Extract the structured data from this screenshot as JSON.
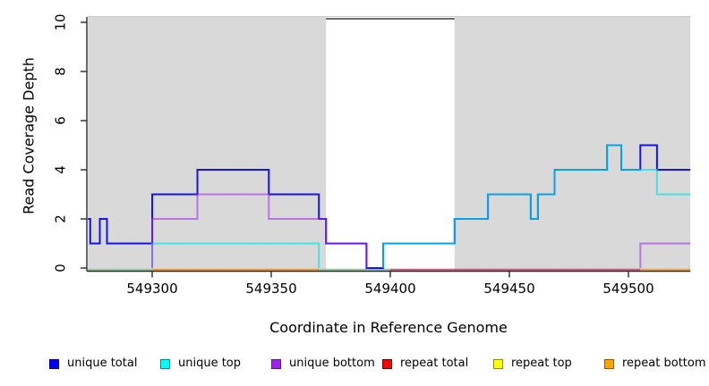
{
  "chart_data": {
    "type": "line",
    "title": "",
    "xlabel": "Coordinate in Reference Genome",
    "ylabel": "Read Coverage Depth",
    "xlim": [
      549273,
      549526
    ],
    "ylim": [
      0,
      10
    ],
    "x_ticks": [
      549300,
      549350,
      549400,
      549450,
      549500
    ],
    "x_tick_labels": [
      "549300",
      "549350",
      "549400",
      "549450",
      "549500"
    ],
    "y_ticks": [
      0,
      2,
      4,
      6,
      8,
      10
    ],
    "y_tick_labels": [
      "0",
      "2",
      "4",
      "6",
      "8",
      "10"
    ],
    "grid": false,
    "legend_position": "bottom",
    "shaded_regions": [
      {
        "from": 549273,
        "to": 549373
      },
      {
        "from": 549427,
        "to": 549526
      }
    ],
    "gap_region": {
      "from": 549373,
      "to": 549427
    },
    "series": [
      {
        "name": "unique total",
        "line_color": "#1414eb",
        "opacity": 1,
        "break_at_zero": false,
        "end": 549526,
        "steps": [
          [
            549273,
            2
          ],
          [
            549274,
            1
          ],
          [
            549278,
            2
          ],
          [
            549281,
            1
          ],
          [
            549300,
            3
          ],
          [
            549319,
            4
          ],
          [
            549349,
            3
          ],
          [
            549370,
            2
          ],
          [
            549373,
            1
          ],
          [
            549390,
            0
          ],
          [
            549397,
            1
          ],
          [
            549427,
            2
          ],
          [
            549441,
            3
          ],
          [
            549459,
            2
          ],
          [
            549462,
            3
          ],
          [
            549469,
            4
          ],
          [
            549491,
            5
          ],
          [
            549497,
            4
          ],
          [
            549505,
            5
          ],
          [
            549512,
            4
          ]
        ]
      },
      {
        "name": "unique top",
        "line_color": "#00e6e6",
        "opacity": 0.68,
        "break_at_zero": true,
        "end": 549526,
        "steps": [
          [
            549273,
            0
          ],
          [
            549300,
            1
          ],
          [
            549370,
            0
          ],
          [
            549397,
            1
          ],
          [
            549427,
            2
          ],
          [
            549441,
            3
          ],
          [
            549459,
            2
          ],
          [
            549462,
            3
          ],
          [
            549469,
            4
          ],
          [
            549491,
            5
          ],
          [
            549497,
            4
          ],
          [
            549512,
            3
          ]
        ]
      },
      {
        "name": "unique bottom",
        "line_color": "#a020f0",
        "opacity": 0.55,
        "break_at_zero": true,
        "end": 549526,
        "steps": [
          [
            549273,
            0
          ],
          [
            549300,
            2
          ],
          [
            549319,
            3
          ],
          [
            549349,
            2
          ],
          [
            549373,
            1
          ],
          [
            549390,
            0
          ],
          [
            549505,
            1
          ]
        ]
      },
      {
        "name": "repeat total",
        "line_color": "#ff0000",
        "opacity": 1,
        "break_at_zero": true,
        "end": 549526,
        "steps": [
          [
            549273,
            0
          ]
        ]
      },
      {
        "name": "repeat top",
        "line_color": "#ffff00",
        "opacity": 1,
        "break_at_zero": true,
        "end": 549526,
        "steps": [
          [
            549273,
            0
          ]
        ]
      },
      {
        "name": "repeat bottom",
        "line_color": "#ffa500",
        "opacity": 1,
        "break_at_zero": true,
        "end": 549526,
        "steps": [
          [
            549273,
            0
          ]
        ]
      }
    ],
    "baseline_segments": [
      {
        "from": 549273,
        "to": 549300,
        "color": "#8fcb9b"
      },
      {
        "from": 549300,
        "to": 549370,
        "color": "#ff9c14"
      },
      {
        "from": 549370,
        "to": 549400,
        "color": "#8fcb9b"
      },
      {
        "from": 549400,
        "to": 549505,
        "color": "#d4547e"
      },
      {
        "from": 549505,
        "to": 549526,
        "color": "#ffa520"
      }
    ],
    "colors": {
      "shade_fill": "#d9d9d9",
      "shade_top_edge": "#c9c9c9",
      "gap_top_line": "#6a6a6a",
      "axis": "#2a2a2a",
      "tick_text": "#000000"
    }
  },
  "legend": {
    "items": [
      {
        "label": "unique total",
        "fill": "#0000ff",
        "border": "#00008b"
      },
      {
        "label": "unique top",
        "fill": "#00ffff",
        "border": "#008b8b"
      },
      {
        "label": "unique bottom",
        "fill": "#a020f0",
        "border": "#551a8b"
      },
      {
        "label": "repeat total",
        "fill": "#ff0000",
        "border": "#600000"
      },
      {
        "label": "repeat top",
        "fill": "#ffff00",
        "border": "#8b8b00"
      },
      {
        "label": "repeat bottom",
        "fill": "#ffa500",
        "border": "#945600"
      }
    ]
  }
}
